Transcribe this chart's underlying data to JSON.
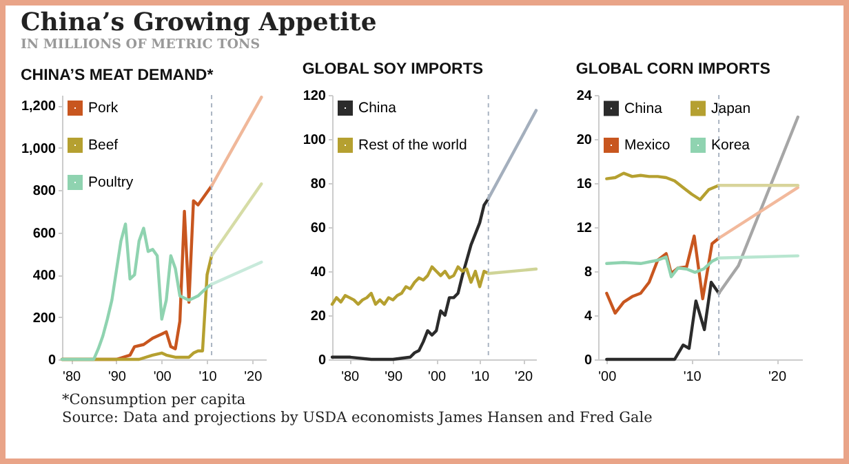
{
  "chart_data": [
    {
      "type": "other",
      "title": "China’s Growing Appetite",
      "subtitle": "IN MILLIONS OF METRIC TONS",
      "annotations": [
        "*Consumption per capita",
        "Source: Data and projections by USDA economists James Hansen and Fred Gale"
      ]
    },
    {
      "type": "line",
      "title": "CHINA’S MEAT DEMAND*",
      "xlim": [
        1978,
        2023
      ],
      "xticks": [
        {
          "value": 1980,
          "label": "'80"
        },
        {
          "value": 1990,
          "label": "'90"
        },
        {
          "value": 2000,
          "label": "'00"
        },
        {
          "value": 2010,
          "label": "'10"
        },
        {
          "value": 2020,
          "label": "'20"
        }
      ],
      "ylim": [
        0,
        1250
      ],
      "yticks": [
        0,
        200,
        400,
        600,
        800,
        {
          "value": 1000,
          "label": "1,000"
        },
        {
          "value": 1200,
          "label": "1,200"
        }
      ],
      "legend": "top left",
      "ref_lines": [
        {
          "axis": "x",
          "value": 2011,
          "color": "#a9b4c2",
          "line_style": "dashed"
        }
      ],
      "series": [
        {
          "name": "Pork",
          "color": "#c8561f",
          "x": [
            1978,
            1990,
            1993,
            1994,
            1996,
            1998,
            2000,
            2001,
            2002,
            2003,
            2004,
            2005,
            2006,
            2007,
            2008,
            2009,
            2010,
            2011
          ],
          "values": [
            0,
            0,
            20,
            60,
            70,
            100,
            120,
            130,
            60,
            50,
            180,
            700,
            270,
            750,
            730,
            760,
            790,
            820
          ]
        },
        {
          "name": "Beef",
          "color": "#b5a030",
          "x": [
            1978,
            1995,
            1998,
            2000,
            2001,
            2003,
            2006,
            2007,
            2008,
            2009,
            2010,
            2011
          ],
          "values": [
            0,
            0,
            20,
            30,
            20,
            10,
            10,
            30,
            40,
            40,
            400,
            490
          ]
        },
        {
          "name": "Poultry",
          "color": "#8fd3b0",
          "x": [
            1978,
            1985,
            1986,
            1987,
            1988,
            1989,
            1990,
            1991,
            1992,
            1993,
            1994,
            1995,
            1996,
            1997,
            1998,
            1999,
            2000,
            2001,
            2002,
            2003,
            2004,
            2005,
            2006,
            2007,
            2008,
            2009,
            2010,
            2011
          ],
          "values": [
            0,
            0,
            50,
            110,
            190,
            280,
            420,
            560,
            640,
            380,
            400,
            560,
            620,
            510,
            520,
            490,
            190,
            280,
            490,
            430,
            300,
            290,
            280,
            290,
            300,
            320,
            340,
            355
          ]
        },
        {
          "color": "#f0b89a",
          "x": [
            2011,
            2022
          ],
          "values": [
            820,
            1240
          ]
        },
        {
          "color": "#d6dca6",
          "x": [
            2011,
            2022
          ],
          "values": [
            490,
            830
          ]
        },
        {
          "color": "#c8eadb",
          "x": [
            2011,
            2022
          ],
          "values": [
            355,
            460
          ]
        }
      ]
    },
    {
      "type": "line",
      "title": "GLOBAL SOY IMPORTS",
      "xlim": [
        1976,
        2023
      ],
      "xticks": [
        {
          "value": 1980,
          "label": "'80"
        },
        {
          "value": 1990,
          "label": "'90"
        },
        {
          "value": 2000,
          "label": "'00"
        },
        {
          "value": 2010,
          "label": "'10"
        },
        {
          "value": 2020,
          "label": "'20"
        }
      ],
      "ylim": [
        0,
        120
      ],
      "yticks": [
        0,
        20,
        40,
        60,
        80,
        100,
        120
      ],
      "legend": "top left",
      "ref_lines": [
        {
          "axis": "x",
          "value": 2012,
          "color": "#a9b4c2",
          "line_style": "dashed"
        }
      ],
      "series": [
        {
          "name": "China",
          "color": "#2b2b2b",
          "x": [
            1976,
            1980,
            1985,
            1990,
            1994,
            1995,
            1996,
            1997,
            1998,
            1999,
            2000,
            2001,
            2002,
            2003,
            2004,
            2005,
            2006,
            2007,
            2008,
            2009,
            2010,
            2011,
            2012
          ],
          "values": [
            1,
            1,
            0,
            0,
            1,
            3,
            4,
            8,
            13,
            11,
            13,
            22,
            20,
            28,
            28,
            30,
            38,
            45,
            52,
            57,
            62,
            70,
            73
          ]
        },
        {
          "name": "Rest of the world",
          "color": "#b5a030",
          "x": [
            1976,
            1977,
            1978,
            1979,
            1980,
            1981,
            1982,
            1983,
            1984,
            1985,
            1986,
            1987,
            1988,
            1989,
            1990,
            1991,
            1992,
            1993,
            1994,
            1995,
            1996,
            1997,
            1998,
            1999,
            2000,
            2001,
            2002,
            2003,
            2004,
            2005,
            2006,
            2007,
            2008,
            2009,
            2010,
            2011,
            2012
          ],
          "values": [
            25,
            28,
            26,
            29,
            28,
            27,
            25,
            27,
            28,
            30,
            25,
            27,
            25,
            28,
            27,
            29,
            30,
            33,
            32,
            35,
            37,
            36,
            38,
            42,
            40,
            38,
            40,
            37,
            38,
            42,
            40,
            41,
            35,
            40,
            33,
            40,
            39
          ]
        },
        {
          "color": "#a4afbd",
          "x": [
            2012,
            2023
          ],
          "values": [
            73,
            113
          ]
        },
        {
          "color": "#cfd497",
          "x": [
            2012,
            2023
          ],
          "values": [
            39,
            41
          ]
        }
      ]
    },
    {
      "type": "line",
      "title": "GLOBAL CORN IMPORTS",
      "xlim": [
        1999,
        2023
      ],
      "xticks": [
        {
          "value": 2000,
          "label": "'00"
        },
        {
          "value": 2010,
          "label": "'10"
        },
        {
          "value": 2020,
          "label": "'20"
        }
      ],
      "ylim": [
        0,
        24
      ],
      "yticks": [
        0,
        4,
        8,
        12,
        16,
        20,
        24
      ],
      "legend": "top left",
      "ref_lines": [
        {
          "axis": "x",
          "value": 2013.2,
          "color": "#a9b4c2",
          "line_style": "dashed"
        }
      ],
      "series": [
        {
          "name": "China",
          "color": "#2b2b2b",
          "x": [
            2000,
            2004,
            2008,
            2009,
            2009.7,
            2010.5,
            2011.5,
            2012.3,
            2013.2
          ],
          "values": [
            0,
            0,
            0,
            1.3,
            1,
            5.3,
            2.7,
            7,
            6
          ]
        },
        {
          "name": "Mexico",
          "color": "#c8561f",
          "x": [
            2000,
            2001,
            2002,
            2003,
            2004,
            2005,
            2006,
            2007,
            2007.6,
            2008.4,
            2009.4,
            2010.3,
            2011.3,
            2012.4,
            2013.2
          ],
          "values": [
            6,
            4.2,
            5.2,
            5.7,
            6,
            7,
            9,
            9.6,
            7.8,
            8.3,
            8.4,
            11.2,
            5.5,
            10.5,
            11
          ]
        },
        {
          "name": "Japan",
          "color": "#b5a030",
          "x": [
            2000,
            2001,
            2002,
            2003,
            2004,
            2005,
            2006,
            2007,
            2008,
            2009,
            2010,
            2011,
            2012,
            2013.2
          ],
          "values": [
            16.4,
            16.5,
            16.9,
            16.6,
            16.7,
            16.6,
            16.6,
            16.5,
            16.2,
            15.6,
            15,
            14.5,
            15.4,
            15.8
          ]
        },
        {
          "name": "Korea",
          "color": "#8fd3b0",
          "x": [
            2000,
            2002,
            2004,
            2006,
            2007,
            2007.6,
            2008.4,
            2009.4,
            2010.4,
            2011.4,
            2012.4,
            2013.2
          ],
          "values": [
            8.7,
            8.8,
            8.7,
            9,
            9.3,
            7.5,
            8.3,
            8.2,
            7.9,
            8.2,
            8.9,
            9.2
          ]
        },
        {
          "color": "#a6a6a6",
          "x": [
            2013.2,
            2015.5,
            2022.5
          ],
          "values": [
            6,
            8.5,
            22
          ]
        },
        {
          "color": "#f2b99c",
          "x": [
            2013.2,
            2022.5
          ],
          "values": [
            11,
            15.6
          ]
        },
        {
          "color": "#d8d49a",
          "x": [
            2013.2,
            2022.5
          ],
          "values": [
            15.8,
            15.8
          ]
        },
        {
          "color": "#b8e6d0",
          "x": [
            2013.2,
            2022.5
          ],
          "values": [
            9.2,
            9.4
          ]
        }
      ]
    }
  ]
}
